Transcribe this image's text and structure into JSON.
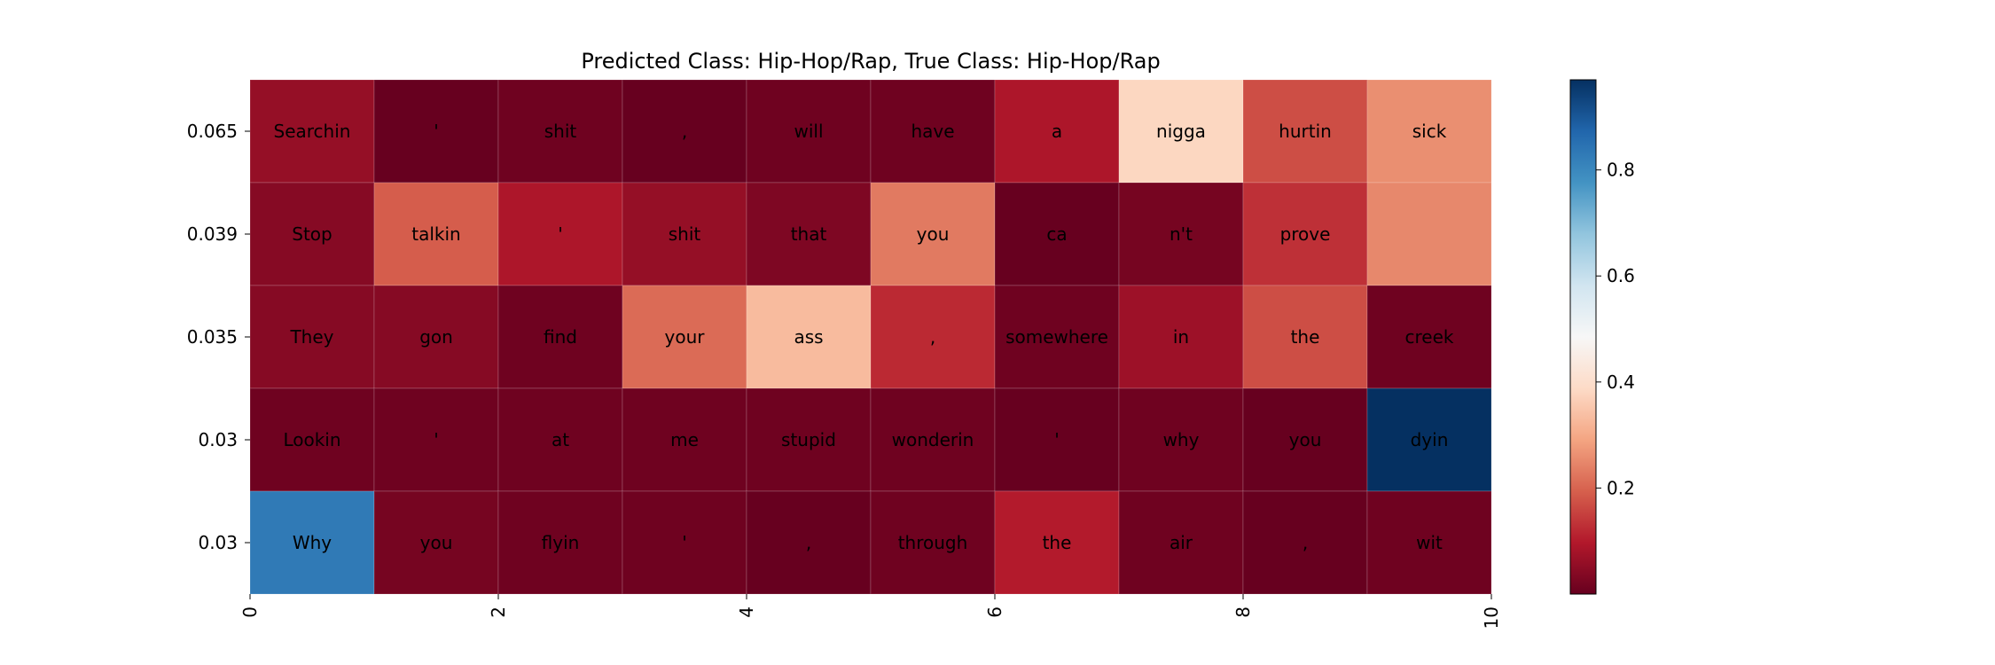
{
  "chart_data": {
    "type": "heatmap",
    "title": "Predicted Class: Hip-Hop/Rap, True Class: Hip-Hop/Rap",
    "xlabel": "",
    "ylabel": "",
    "xlim": [
      0,
      10
    ],
    "x_ticks": [
      "0",
      "2",
      "4",
      "6",
      "8",
      "10"
    ],
    "x_tick_values": [
      0,
      2,
      4,
      6,
      8,
      10
    ],
    "row_labels": [
      "0.065",
      "0.039",
      "0.035",
      "0.03",
      "0.03"
    ],
    "colormap": "RdBu",
    "colorbar": {
      "range": [
        0.0,
        0.97
      ],
      "ticks": [
        "0.2",
        "0.4",
        "0.6",
        "0.8"
      ],
      "tick_values": [
        0.2,
        0.4,
        0.6,
        0.8
      ]
    },
    "rows": [
      {
        "words": [
          "Searchin",
          "'",
          "shit",
          ",",
          "will",
          "have",
          "a",
          "nigga",
          "hurtin",
          "sick"
        ],
        "values": [
          0.06,
          0.0,
          0.01,
          0.0,
          0.01,
          0.01,
          0.09,
          0.38,
          0.17,
          0.26
        ]
      },
      {
        "words": [
          "Stop",
          "talkin",
          "'",
          "shit",
          "that",
          "you",
          "ca",
          "n't",
          "prove",
          ""
        ],
        "values": [
          0.04,
          0.19,
          0.09,
          0.06,
          0.03,
          0.23,
          0.0,
          0.02,
          0.13,
          0.25
        ]
      },
      {
        "words": [
          "They",
          "gon",
          "find",
          "your",
          "ass",
          ",",
          "somewhere",
          "in",
          "the",
          "creek"
        ],
        "values": [
          0.04,
          0.04,
          0.01,
          0.21,
          0.33,
          0.12,
          0.01,
          0.07,
          0.17,
          0.01
        ]
      },
      {
        "words": [
          "Lookin",
          "'",
          "at",
          "me",
          "stupid",
          "wonderin",
          "'",
          "why",
          "you",
          "dyin"
        ],
        "values": [
          0.01,
          0.01,
          0.01,
          0.01,
          0.01,
          0.01,
          0.0,
          0.01,
          0.0,
          0.97
        ]
      },
      {
        "words": [
          "Why",
          "you",
          "flyin",
          "'",
          ",",
          "through",
          "the",
          "air",
          ",",
          "wit"
        ],
        "values": [
          0.83,
          0.02,
          0.01,
          0.01,
          0.0,
          0.01,
          0.1,
          0.01,
          0.0,
          0.01
        ]
      }
    ]
  }
}
